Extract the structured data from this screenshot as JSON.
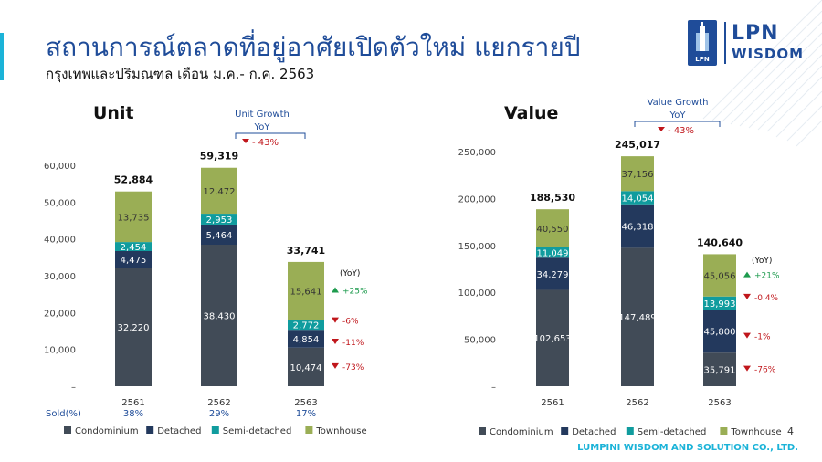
{
  "title": "สถานการณ์ตลาดที่อยู่อาศัยเปิดตัวใหม่ แยกรายปี",
  "subtitle": "กรุงเทพและปริมณฑล เดือน ม.ค.- ก.ค. 2563",
  "logo": {
    "main": "LPN",
    "sub": "WISDOM",
    "mark": "LPN"
  },
  "footer": "LUMPINI WISDOM AND SOLUTION CO., LTD.",
  "page_number": "4",
  "colors": {
    "condominium": "#414b57",
    "detached": "#23395d",
    "semi_detached": "#109c9e",
    "townhouse": "#9aae55",
    "title": "#1f4c99",
    "up": "#1e9b4e",
    "down": "#c0161b"
  },
  "chart_data": [
    {
      "type": "bar",
      "stacked": true,
      "title": "Unit",
      "categories": [
        "2561",
        "2562",
        "2563"
      ],
      "series": [
        {
          "name": "Condominium",
          "values": [
            32220,
            38430,
            10474
          ]
        },
        {
          "name": "Detached",
          "values": [
            4475,
            5464,
            4854
          ]
        },
        {
          "name": "Semi-detached",
          "values": [
            2454,
            2953,
            2772
          ]
        },
        {
          "name": "Townhouse",
          "values": [
            13735,
            12472,
            15641
          ]
        }
      ],
      "series_labels": [
        [
          "32,220",
          "38,430",
          "10,474"
        ],
        [
          "4,475",
          "5,464",
          "4,854"
        ],
        [
          "2,454",
          "2,953",
          "2,772"
        ],
        [
          "13,735",
          "12,472",
          "15,641"
        ]
      ],
      "totals": [
        "52,884",
        "59,319",
        "33,741"
      ],
      "ylim": [
        0,
        60000
      ],
      "yticks": [
        "–",
        "10,000",
        "20,000",
        "30,000",
        "40,000",
        "50,000",
        "60,000"
      ],
      "growth_header": [
        "Unit Growth",
        "YoY"
      ],
      "growth_total": "- 43%",
      "yoy_label": "(YoY)",
      "yoy": [
        {
          "series": "Townhouse",
          "label": "+25%",
          "dir": "up"
        },
        {
          "series": "Semi-detached",
          "label": "-6%",
          "dir": "down"
        },
        {
          "series": "Detached",
          "label": "-11%",
          "dir": "down"
        },
        {
          "series": "Condominium",
          "label": "-73%",
          "dir": "down"
        }
      ],
      "sold_label": "Sold(%)",
      "sold": [
        "38%",
        "29%",
        "17%"
      ],
      "legend": [
        "Condominium",
        "Detached",
        "Semi-detached",
        "Townhouse"
      ]
    },
    {
      "type": "bar",
      "stacked": true,
      "title": "Value",
      "categories": [
        "2561",
        "2562",
        "2563"
      ],
      "series": [
        {
          "name": "Condominium",
          "values": [
            102653,
            147489,
            35791
          ]
        },
        {
          "name": "Detached",
          "values": [
            34279,
            46318,
            45800
          ]
        },
        {
          "name": "Semi-detached",
          "values": [
            11049,
            14054,
            13993
          ]
        },
        {
          "name": "Townhouse",
          "values": [
            40550,
            37156,
            45056
          ]
        }
      ],
      "series_labels": [
        [
          "102,653",
          "147,489",
          "35,791"
        ],
        [
          "34,279",
          "46,318",
          "45,800"
        ],
        [
          "11,049",
          "14,054",
          "13,993"
        ],
        [
          "40,550",
          "37,156",
          "45,056"
        ]
      ],
      "totals": [
        "188,530",
        "245,017",
        "140,640"
      ],
      "ylim": [
        0,
        250000
      ],
      "yticks": [
        "–",
        "50,000",
        "100,000",
        "150,000",
        "200,000",
        "250,000"
      ],
      "growth_header": [
        "Value Growth",
        "YoY"
      ],
      "growth_total": "- 43%",
      "yoy_label": "(YoY)",
      "yoy": [
        {
          "series": "Townhouse",
          "label": "+21%",
          "dir": "up"
        },
        {
          "series": "Semi-detached",
          "label": "-0.4%",
          "dir": "down"
        },
        {
          "series": "Detached",
          "label": "-1%",
          "dir": "down"
        },
        {
          "series": "Condominium",
          "label": "-76%",
          "dir": "down"
        }
      ],
      "legend": [
        "Condominium",
        "Detached",
        "Semi-detached",
        "Townhouse"
      ]
    }
  ]
}
